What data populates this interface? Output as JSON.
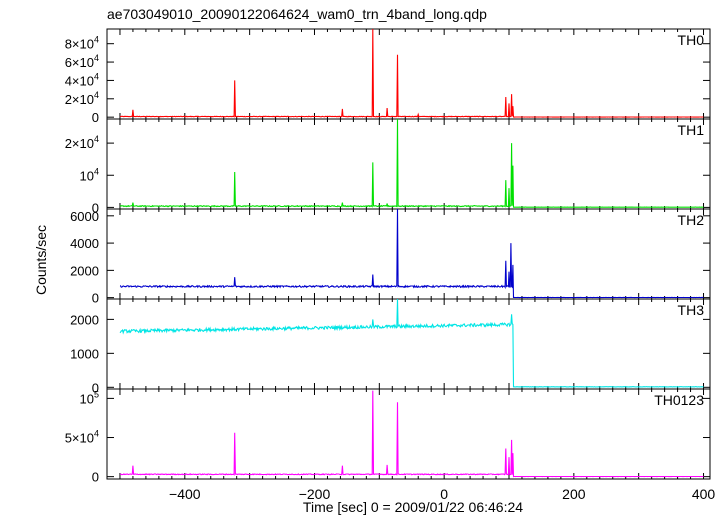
{
  "title": "ae703049010_20090122064624_wam0_trn_4band_long.qdp",
  "xlabel": "Time [sec] 0 = 2009/01/22 06:46:24",
  "ylabel": "Counts/sec",
  "chart_data": {
    "type": "line",
    "title": "ae703049010_20090122064624_wam0_trn_4band_long.qdp",
    "xlabel": "Time [sec] 0 = 2009/01/22 06:46:24",
    "ylabel": "Counts/sec",
    "xlim": [
      -520,
      410
    ],
    "x_ticks": [
      -400,
      -200,
      0,
      200,
      400
    ],
    "x_tick_labels": [
      "−400",
      "−200",
      "0",
      "200",
      "400"
    ],
    "panels": [
      {
        "name": "TH0",
        "color": "#ff0000",
        "ylim": [
          -2000,
          96000
        ],
        "yticks": [
          0,
          20000,
          40000,
          60000,
          80000
        ],
        "ytick_labels": [
          {
            "text": "0"
          },
          {
            "text": "2×10",
            "sup": "4"
          },
          {
            "text": "4×10",
            "sup": "4"
          },
          {
            "text": "6×10",
            "sup": "4"
          },
          {
            "text": "8×10",
            "sup": "4"
          }
        ],
        "baseline": 700,
        "noise": 300,
        "spikes": [
          [
            -480,
            8000
          ],
          [
            -323,
            40000
          ],
          [
            -157,
            9000
          ],
          [
            -110,
            97000
          ],
          [
            -88,
            10000
          ],
          [
            -72,
            68000
          ],
          [
            -40,
            3000
          ],
          [
            95,
            22000
          ],
          [
            100,
            15000
          ],
          [
            104,
            25000
          ],
          [
            106,
            12000
          ]
        ],
        "after": {
          "start": 107,
          "value": 100
        }
      },
      {
        "name": "TH1",
        "color": "#00e000",
        "ylim": [
          -500,
          27500
        ],
        "yticks": [
          0,
          10000,
          20000
        ],
        "ytick_labels": [
          {
            "text": "0"
          },
          {
            "text": "10",
            "sup": "4"
          },
          {
            "text": "2×10",
            "sup": "4"
          }
        ],
        "baseline": 400,
        "noise": 150,
        "spikes": [
          [
            -480,
            1500
          ],
          [
            -323,
            11000
          ],
          [
            -157,
            1500
          ],
          [
            -110,
            14000
          ],
          [
            -88,
            1200
          ],
          [
            -72,
            27500
          ],
          [
            95,
            8500
          ],
          [
            100,
            6000
          ],
          [
            104,
            20000
          ],
          [
            106,
            13000
          ]
        ],
        "after": {
          "start": 107,
          "value": 50
        }
      },
      {
        "name": "TH2",
        "color": "#0000cc",
        "ylim": [
          -100,
          6500
        ],
        "yticks": [
          0,
          2000,
          4000,
          6000
        ],
        "ytick_labels": [
          {
            "text": "0"
          },
          {
            "text": "2000"
          },
          {
            "text": "4000"
          },
          {
            "text": "6000"
          }
        ],
        "baseline": 820,
        "noise": 60,
        "spikes": [
          [
            -323,
            1500
          ],
          [
            -110,
            1700
          ],
          [
            -72,
            6500
          ],
          [
            95,
            2700
          ],
          [
            100,
            1900
          ],
          [
            103,
            4000
          ],
          [
            106,
            2400
          ]
        ],
        "after": {
          "start": 107,
          "value": 5
        }
      },
      {
        "name": "TH3",
        "color": "#00e5e5",
        "ylim": [
          -50,
          2600
        ],
        "yticks": [
          0,
          1000,
          2000
        ],
        "ytick_labels": [
          {
            "text": "0"
          },
          {
            "text": "1000"
          },
          {
            "text": "2000"
          }
        ],
        "baseline_start": 1650,
        "baseline_end": 1850,
        "noise": 45,
        "spikes": [
          [
            -110,
            2000
          ],
          [
            -72,
            2600
          ],
          [
            104,
            2150
          ]
        ],
        "after": {
          "start": 107,
          "value": 10
        }
      },
      {
        "name": "TH0123",
        "color": "#ff00ff",
        "ylim": [
          -3000,
          112000
        ],
        "yticks": [
          0,
          50000,
          100000
        ],
        "ytick_labels": [
          {
            "text": "0"
          },
          {
            "text": "5×10",
            "sup": "4"
          },
          {
            "text": "10",
            "sup": "5"
          }
        ],
        "baseline": 3000,
        "noise": 500,
        "spikes": [
          [
            -480,
            14000
          ],
          [
            -323,
            56000
          ],
          [
            -157,
            14000
          ],
          [
            -110,
            110000
          ],
          [
            -88,
            15000
          ],
          [
            -72,
            95000
          ],
          [
            95,
            36000
          ],
          [
            100,
            25000
          ],
          [
            104,
            47000
          ],
          [
            106,
            30000
          ]
        ],
        "after": {
          "start": 107,
          "value": 100
        }
      }
    ]
  }
}
